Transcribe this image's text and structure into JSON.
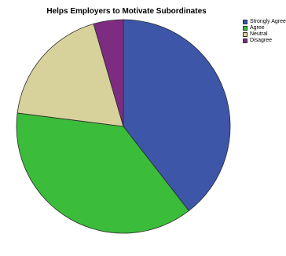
{
  "chart_data": {
    "type": "pie",
    "title": "Helps Employers to Motivate Subordinates",
    "categories": [
      "Strongly Agree",
      "Agree",
      "Neutral",
      "Disagree"
    ],
    "values": [
      39.5,
      37.5,
      18.5,
      4.5
    ],
    "colors": [
      "#3d56a8",
      "#3bbd3b",
      "#d7d19c",
      "#7e2c82"
    ],
    "legend_position": "top-right",
    "legend_labels": [
      "Strongly Agree",
      "Agree",
      "Neutral",
      "Disagree"
    ]
  }
}
